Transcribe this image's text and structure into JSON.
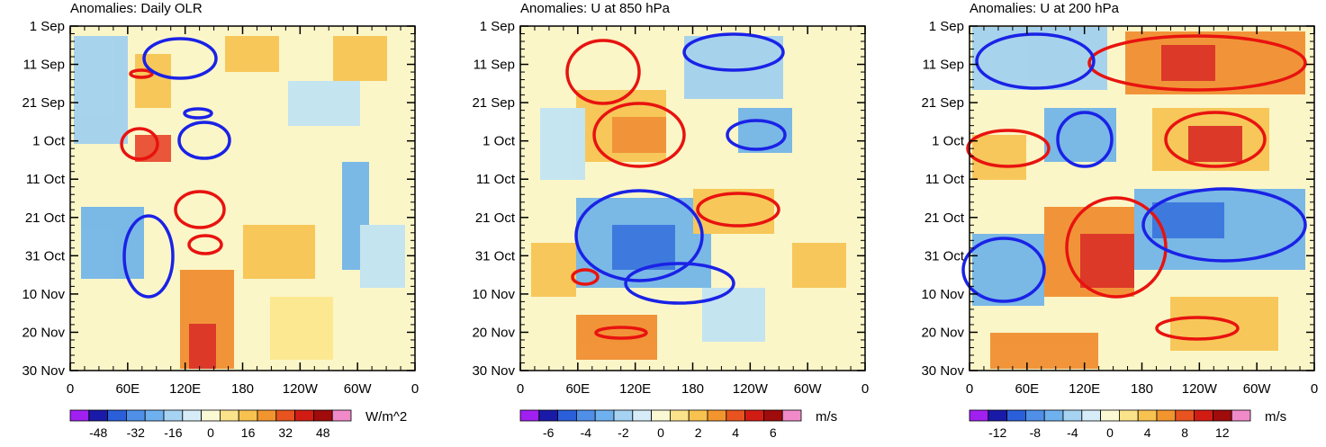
{
  "chart_data": [
    {
      "type": "heatmap",
      "title": "Anomalies: Daily OLR",
      "x_ticks": [
        "0",
        "60E",
        "120E",
        "180",
        "120W",
        "60W",
        "0"
      ],
      "x_values_deg_east": [
        0,
        60,
        120,
        180,
        240,
        300,
        360
      ],
      "y_ticks": [
        "1 Sep",
        "11 Sep",
        "21 Sep",
        "1 Oct",
        "11 Oct",
        "21 Oct",
        "31 Oct",
        "10 Nov",
        "20 Nov",
        "30 Nov"
      ],
      "y_range_days": [
        0,
        90
      ],
      "colorbar": {
        "units": "W/m^2",
        "levels": [
          -56,
          -48,
          -40,
          -32,
          -24,
          -16,
          -8,
          0,
          8,
          16,
          24,
          32,
          40,
          48,
          56
        ],
        "labels": [
          "-48",
          "-32",
          "-16",
          "0",
          "16",
          "32",
          "48"
        ],
        "label_values": [
          -48,
          -32,
          -16,
          0,
          16,
          32,
          48
        ]
      },
      "contours": [
        {
          "name": "positive",
          "color": "#e8130f",
          "centers": [
            [
              20,
              16
            ],
            [
              37,
              65
            ],
            [
              128,
              18
            ],
            [
              138,
              29
            ]
          ]
        },
        {
          "name": "negative",
          "color": "#1a22e6",
          "centers": [
            [
              75,
              6
            ],
            [
              113,
              32
            ],
            [
              120,
              69
            ],
            [
              138,
              78
            ]
          ]
        }
      ]
    },
    {
      "type": "heatmap",
      "title": "Anomalies: U at 850 hPa",
      "x_ticks": [
        "0",
        "60E",
        "120E",
        "180",
        "120W",
        "60W",
        "0"
      ],
      "x_values_deg_east": [
        0,
        60,
        120,
        180,
        240,
        300,
        360
      ],
      "y_ticks": [
        "1 Sep",
        "11 Sep",
        "21 Sep",
        "1 Oct",
        "11 Oct",
        "21 Oct",
        "31 Oct",
        "10 Nov",
        "20 Nov",
        "30 Nov"
      ],
      "y_range_days": [
        0,
        90
      ],
      "colorbar": {
        "units": "m/s",
        "levels": [
          -7,
          -6,
          -5,
          -4,
          -3,
          -2,
          -1,
          0,
          1,
          2,
          3,
          4,
          5,
          6,
          7
        ],
        "labels": [
          "-6",
          "-4",
          "-2",
          "0",
          "2",
          "4",
          "6"
        ],
        "label_values": [
          -6,
          -4,
          -2,
          0,
          2,
          4,
          6
        ]
      },
      "contours": [
        {
          "name": "positive",
          "color": "#e8130f",
          "centers": [
            [
              115,
              28
            ],
            [
              220,
              48
            ],
            [
              60,
              65
            ],
            [
              110,
              80
            ]
          ]
        },
        {
          "name": "negative",
          "color": "#1a22e6",
          "centers": [
            [
              200,
              8
            ],
            [
              240,
              28
            ],
            [
              120,
              57
            ],
            [
              150,
              67
            ]
          ]
        }
      ]
    },
    {
      "type": "heatmap",
      "title": "Anomalies: U at 200 hPa",
      "x_ticks": [
        "0",
        "60E",
        "120E",
        "180",
        "120W",
        "60W",
        "0"
      ],
      "x_values_deg_east": [
        0,
        60,
        120,
        180,
        240,
        300,
        360
      ],
      "y_ticks": [
        "1 Sep",
        "11 Sep",
        "21 Sep",
        "1 Oct",
        "11 Oct",
        "21 Oct",
        "31 Oct",
        "10 Nov",
        "20 Nov",
        "30 Nov"
      ],
      "y_range_days": [
        0,
        90
      ],
      "colorbar": {
        "units": "m/s",
        "levels": [
          -14,
          -12,
          -10,
          -8,
          -6,
          -4,
          -2,
          0,
          2,
          4,
          6,
          8,
          10,
          12,
          14
        ],
        "labels": [
          "-12",
          "-8",
          "-4",
          "0",
          "4",
          "8",
          "12"
        ],
        "label_values": [
          -12,
          -8,
          -4,
          0,
          4,
          8,
          12
        ]
      },
      "contours": [
        {
          "name": "positive",
          "color": "#e8130f",
          "centers": [
            [
              240,
              10
            ],
            [
              255,
              30
            ],
            [
              40,
              32
            ],
            [
              180,
              62
            ],
            [
              220,
              77
            ]
          ]
        },
        {
          "name": "negative",
          "color": "#1a22e6",
          "centers": [
            [
              90,
              8
            ],
            [
              130,
              30
            ],
            [
              270,
              52
            ],
            [
              30,
              68
            ]
          ]
        }
      ]
    }
  ]
}
